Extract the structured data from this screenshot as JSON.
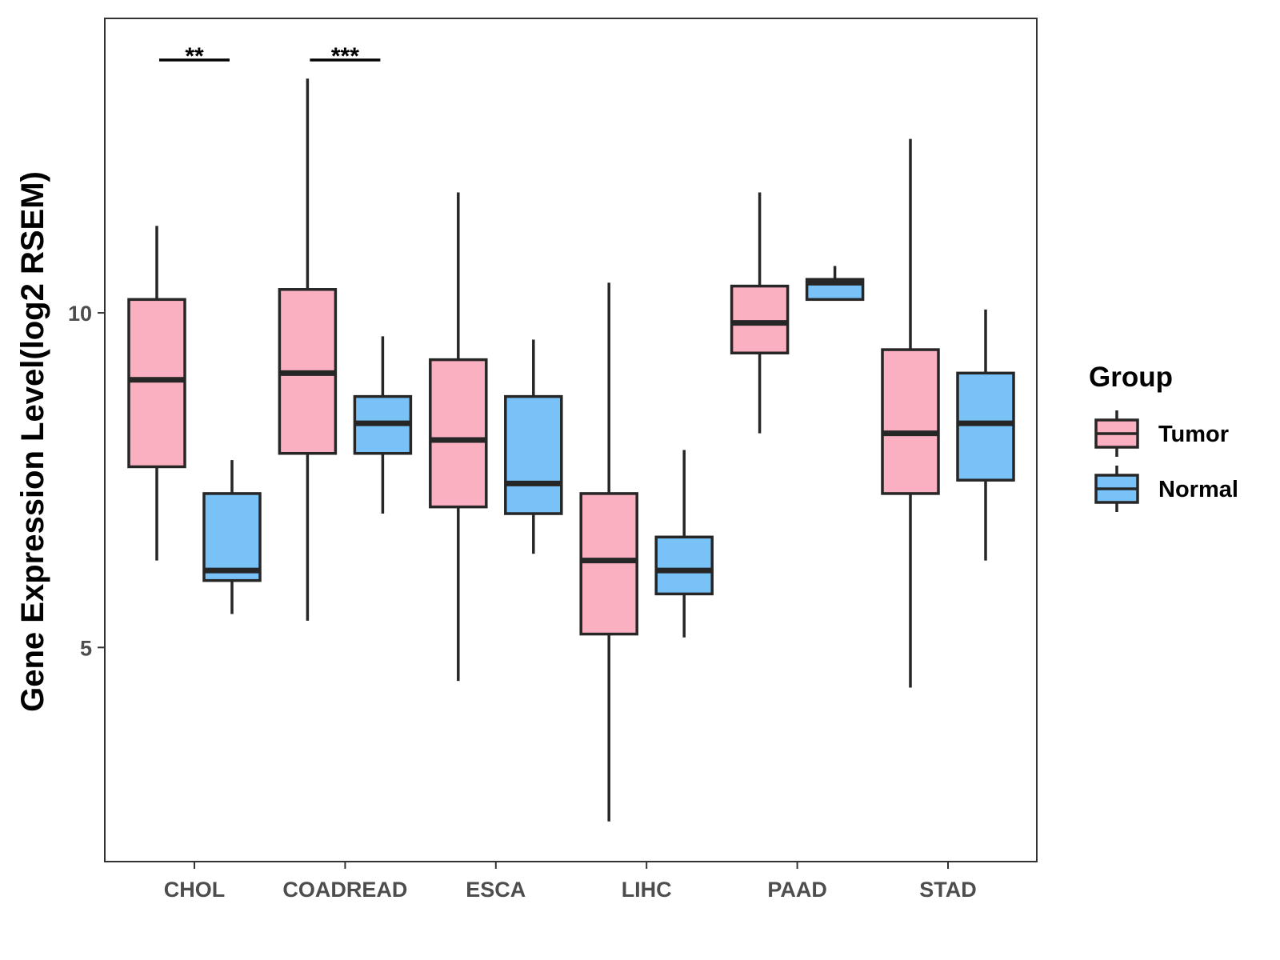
{
  "chart_data": {
    "type": "boxplot",
    "title": "",
    "xlabel": "",
    "ylabel": "Gene Expression Level(log2 RSEM)",
    "ylim": [
      1.8,
      14.4
    ],
    "yticks": [
      5,
      10
    ],
    "grid": false,
    "categories": [
      "CHOL",
      "COADREAD",
      "ESCA",
      "LIHC",
      "PAAD",
      "STAD"
    ],
    "legend": {
      "title": "Group",
      "position": "right",
      "entries": [
        {
          "name": "Tumor",
          "color": "#FBB0C1"
        },
        {
          "name": "Normal",
          "color": "#78C2F8"
        }
      ]
    },
    "series": [
      {
        "name": "Tumor",
        "color": "#FBB0C1",
        "boxes": [
          {
            "category": "CHOL",
            "min": 6.3,
            "q1": 7.7,
            "median": 9.0,
            "q3": 10.2,
            "max": 11.3
          },
          {
            "category": "COADREAD",
            "min": 5.4,
            "q1": 7.9,
            "median": 9.1,
            "q3": 10.35,
            "max": 13.5
          },
          {
            "category": "ESCA",
            "min": 4.5,
            "q1": 7.1,
            "median": 8.1,
            "q3": 9.3,
            "max": 11.8
          },
          {
            "category": "LIHC",
            "min": 2.4,
            "q1": 5.2,
            "median": 6.3,
            "q3": 7.3,
            "max": 10.45
          },
          {
            "category": "PAAD",
            "min": 8.2,
            "q1": 9.4,
            "median": 9.85,
            "q3": 10.4,
            "max": 11.8
          },
          {
            "category": "STAD",
            "min": 4.4,
            "q1": 7.3,
            "median": 8.2,
            "q3": 9.45,
            "max": 12.6
          }
        ]
      },
      {
        "name": "Normal",
        "color": "#78C2F8",
        "boxes": [
          {
            "category": "CHOL",
            "min": 5.5,
            "q1": 6.0,
            "median": 6.15,
            "q3": 7.3,
            "max": 7.8
          },
          {
            "category": "COADREAD",
            "min": 7.0,
            "q1": 7.9,
            "median": 8.35,
            "q3": 8.75,
            "max": 9.65
          },
          {
            "category": "ESCA",
            "min": 6.4,
            "q1": 7.0,
            "median": 7.45,
            "q3": 8.75,
            "max": 9.6
          },
          {
            "category": "LIHC",
            "min": 5.15,
            "q1": 5.8,
            "median": 6.15,
            "q3": 6.65,
            "max": 7.95
          },
          {
            "category": "PAAD",
            "min": 10.2,
            "q1": 10.2,
            "median": 10.45,
            "q3": 10.5,
            "max": 10.7
          },
          {
            "category": "STAD",
            "min": 6.3,
            "q1": 7.5,
            "median": 8.35,
            "q3": 9.1,
            "max": 10.05
          }
        ]
      }
    ],
    "annotations": [
      {
        "category": "CHOL",
        "text": "**"
      },
      {
        "category": "COADREAD",
        "text": "***"
      }
    ]
  }
}
